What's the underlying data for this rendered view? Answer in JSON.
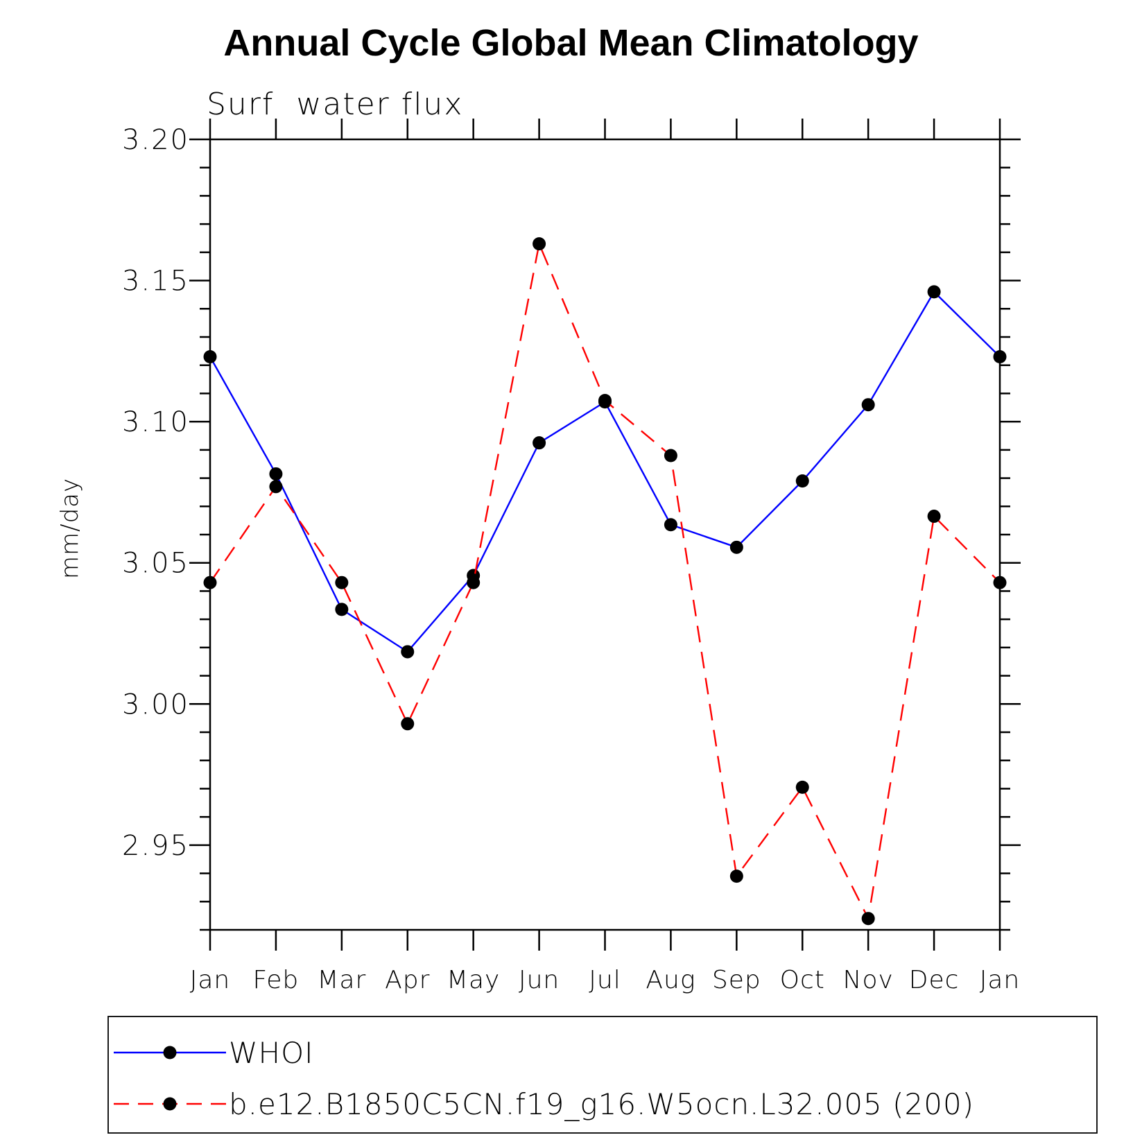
{
  "title": "Annual Cycle Global Mean Climatology",
  "subtitle": "Surf  water flux",
  "chart_data": {
    "type": "line",
    "title": "Annual Cycle Global Mean Climatology",
    "subtitle": "Surf  water flux",
    "xlabel": "",
    "ylabel": "mm/day",
    "categories": [
      "Jan",
      "Feb",
      "Mar",
      "Apr",
      "May",
      "Jun",
      "Jul",
      "Aug",
      "Sep",
      "Oct",
      "Nov",
      "Dec",
      "Jan"
    ],
    "ylim": [
      2.92,
      3.2
    ],
    "yticks": [
      2.95,
      3.0,
      3.05,
      3.1,
      3.15,
      3.2
    ],
    "ytick_labels": [
      "2.95",
      "3.00",
      "3.05",
      "3.10",
      "3.15",
      "3.20"
    ],
    "yminor_step": 0.01,
    "grid": false,
    "legend_position": "bottom",
    "series": [
      {
        "name": "WHOI",
        "color": "#0000ff",
        "dash": "solid",
        "marker": "filled-circle",
        "values": [
          3.123,
          3.0815,
          3.0335,
          3.0185,
          3.0455,
          3.0925,
          3.107,
          3.0635,
          3.0555,
          3.079,
          3.106,
          3.146,
          3.123
        ]
      },
      {
        "name": "b.e12.B1850C5CN.f19_g16.W5ocn.L32.005 (200)",
        "color": "#ff0000",
        "dash": "dashed",
        "marker": "filled-circle",
        "values": [
          3.043,
          3.077,
          3.043,
          2.993,
          3.043,
          3.163,
          3.1075,
          3.088,
          2.939,
          2.9705,
          2.924,
          3.0665,
          3.043
        ]
      }
    ]
  }
}
